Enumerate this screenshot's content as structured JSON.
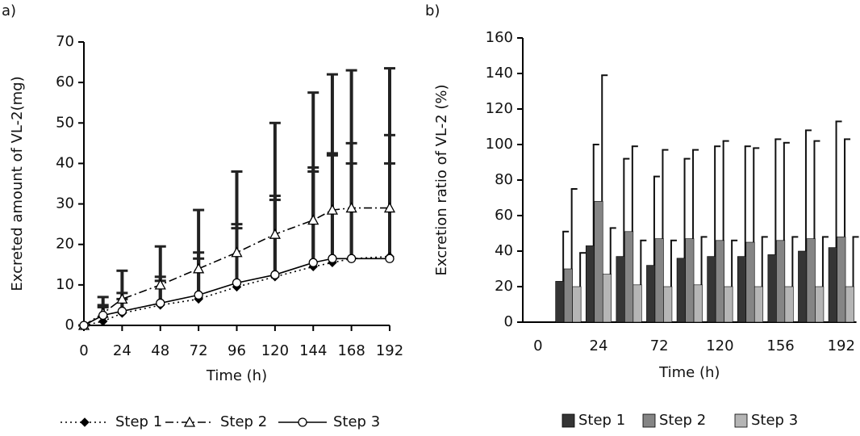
{
  "chart_data": [
    {
      "type": "line",
      "label": "a)",
      "xlabel": "Time (h)",
      "ylabel": "Excreted amount of VL-2(mg)",
      "x": [
        0,
        12,
        24,
        48,
        72,
        96,
        120,
        144,
        156,
        168,
        192
      ],
      "xlim": [
        0,
        192
      ],
      "xticks": [
        0,
        24,
        48,
        72,
        96,
        120,
        144,
        168,
        192
      ],
      "ylim": [
        0,
        70
      ],
      "yticks": [
        0,
        10,
        20,
        30,
        40,
        50,
        60,
        70
      ],
      "legend": "bottom",
      "series": [
        {
          "name": "Step 1",
          "color": "#000000",
          "marker": "diamond",
          "dash": "dotted",
          "values": [
            0,
            1,
            3,
            5,
            6.5,
            9.5,
            12,
            14.5,
            15.5,
            16.5,
            17
          ],
          "errors": [
            0,
            4,
            5,
            7,
            11.5,
            15.5,
            20,
            24.5,
            27,
            28.5,
            30
          ]
        },
        {
          "name": "Step 2",
          "color": "#000000",
          "marker": "triangle",
          "dash": "dashdot",
          "values": [
            0,
            3,
            6.5,
            10,
            14,
            18,
            22.5,
            26,
            28.5,
            29,
            29
          ],
          "errors": [
            0,
            4,
            7,
            9.5,
            14.5,
            20,
            27.5,
            31.5,
            33.5,
            34,
            34.5
          ]
        },
        {
          "name": "Step 3",
          "color": "#000000",
          "marker": "circle",
          "dash": "solid",
          "values": [
            0,
            2.5,
            3.5,
            5.5,
            7.5,
            10.5,
            12.5,
            15.5,
            16.5,
            16.5,
            16.5
          ],
          "errors": [
            0,
            2,
            3,
            5.5,
            9,
            13.5,
            18.5,
            22.5,
            25.5,
            23.5,
            23.5
          ]
        }
      ]
    },
    {
      "type": "bar",
      "label": "b)",
      "xlabel": "Time (h)",
      "ylabel": "Excretion ratio of VL-2 (%)",
      "categories": [
        "0",
        null,
        "24",
        null,
        "72",
        null,
        "120",
        null,
        "156",
        null,
        "192"
      ],
      "ylim": [
        0,
        160
      ],
      "yticks": [
        0,
        20,
        40,
        60,
        80,
        100,
        120,
        140,
        160
      ],
      "legend": "bottom",
      "series": [
        {
          "name": "Step 1",
          "color": "#353535",
          "values": [
            null,
            23,
            43,
            37,
            32,
            36,
            37,
            37,
            38,
            40,
            42
          ],
          "errors": [
            null,
            28,
            57,
            55,
            50,
            56,
            62,
            62,
            65,
            68,
            71
          ]
        },
        {
          "name": "Step 2",
          "color": "#858585",
          "values": [
            null,
            30,
            68,
            51,
            47,
            47,
            46,
            45,
            46,
            47,
            48
          ],
          "errors": [
            null,
            45,
            71,
            48,
            50,
            50,
            56,
            53,
            55,
            55,
            55
          ]
        },
        {
          "name": "Step 3",
          "color": "#b5b5b5",
          "values": [
            null,
            20,
            27,
            21,
            20,
            21,
            20,
            20,
            20,
            20,
            20
          ],
          "errors": [
            null,
            19,
            26,
            25,
            26,
            27,
            26,
            28,
            28,
            28,
            28
          ]
        }
      ]
    }
  ]
}
